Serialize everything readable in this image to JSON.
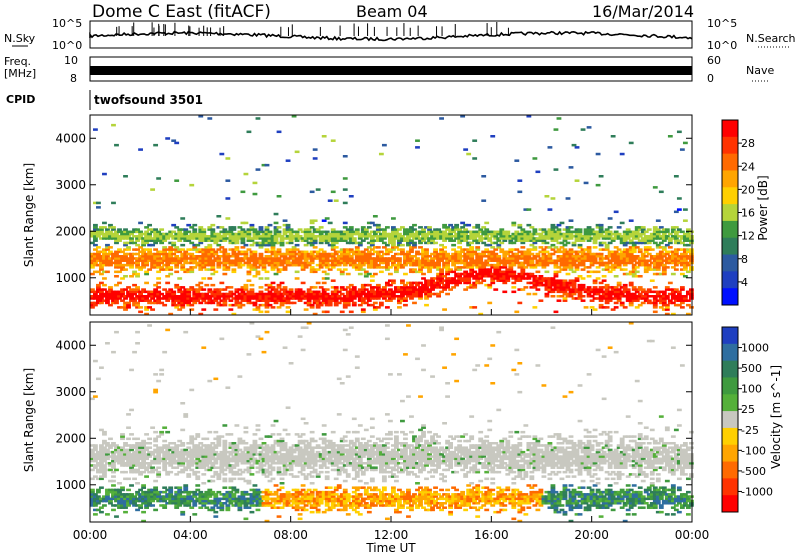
{
  "header": {
    "station": "Dome C East (fitACF)",
    "beam": "Beam 04",
    "date": "16/Mar/2014"
  },
  "nsky_panel": {
    "label": "N.Sky",
    "ticks": [
      "10^5",
      "10^0"
    ],
    "right_ticks": [
      "10^5",
      "10^0"
    ],
    "right_label": "N.Search"
  },
  "freq_panel": {
    "label_line1": "Freq.",
    "label_line2": "[MHz]",
    "ticks": [
      "10",
      "8"
    ],
    "right_ticks": [
      "60",
      "0"
    ],
    "right_label": "Nave"
  },
  "cpid_panel": {
    "label": "CPID",
    "program": "twofsound 3501"
  },
  "chart_data": [
    {
      "type": "heatmap",
      "name": "power",
      "ylabel": "Slant Range [km]",
      "yticks": [
        "4000",
        "3000",
        "2000",
        "1000"
      ],
      "ylim": [
        200,
        4500
      ],
      "colorbar_label": "Power [dB]",
      "colorbar_ticks": [
        "28",
        "24",
        "20",
        "16",
        "12",
        "8",
        "4"
      ],
      "colorbar_colors": [
        "#ff0000",
        "#ff3300",
        "#ff6a00",
        "#ffa500",
        "#ffd000",
        "#b5d43a",
        "#3f9a3f",
        "#2f7d5a",
        "#2c5aa0",
        "#1f3fc0",
        "#0010ff"
      ],
      "bands": [
        {
          "center": 600,
          "width": 400,
          "level": 28
        },
        {
          "center": 1400,
          "width": 500,
          "level": 20
        },
        {
          "center": 1900,
          "width": 350,
          "level": 14
        }
      ]
    },
    {
      "type": "heatmap",
      "name": "velocity",
      "ylabel": "Slant Range [km]",
      "yticks": [
        "4000",
        "3000",
        "2000",
        "1000"
      ],
      "ylim": [
        200,
        4500
      ],
      "colorbar_label": "Velocity [m s^-1]",
      "colorbar_ticks": [
        "1000",
        "500",
        "100",
        "25",
        "-25",
        "-100",
        "-500",
        "-1000"
      ],
      "colorbar_colors": [
        "#1f3fc0",
        "#2f6ea0",
        "#2f7d5a",
        "#3f9a3f",
        "#55b03a",
        "#c8c8c0",
        "#ffd000",
        "#ffa500",
        "#ff6a00",
        "#ff3300",
        "#ff0000"
      ],
      "bands": [
        {
          "center": 700,
          "width": 400,
          "level": 100
        },
        {
          "center": 1600,
          "width": 700,
          "level": 0
        }
      ]
    }
  ],
  "xaxis": {
    "ticks": [
      "00:00",
      "04:00",
      "08:00",
      "12:00",
      "16:00",
      "20:00",
      "00:00"
    ],
    "label": "Time UT"
  },
  "colors": {
    "grey_scatter": "#c8c8c0",
    "axis": "#000000"
  }
}
